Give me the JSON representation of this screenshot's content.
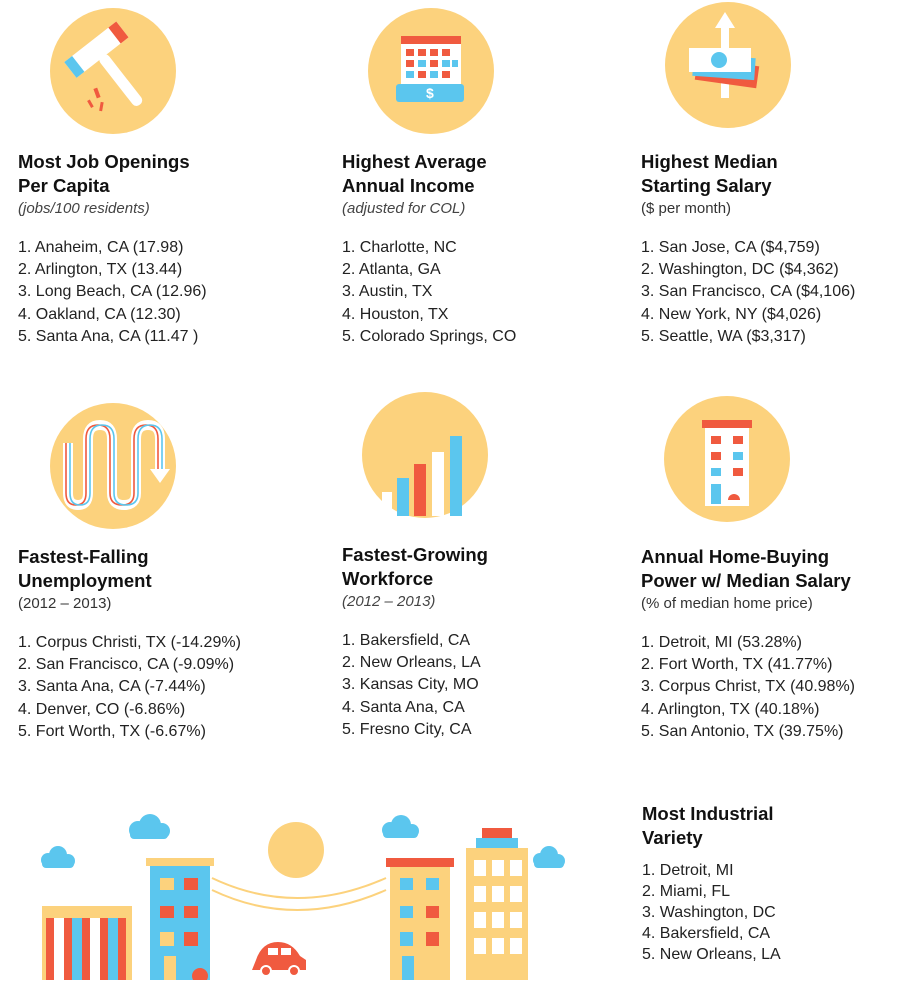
{
  "colors": {
    "circle": "#fcd27d",
    "red": "#f05a3f",
    "blue": "#5bc6ee",
    "white": "#ffffff",
    "text": "#1a1a1a"
  },
  "cards": [
    {
      "id": "job-openings",
      "icon": "hammer-icon",
      "title1": "Most Job Openings",
      "title2": "Per Capita",
      "subtitle": "(jobs/100 residents)",
      "subtitle_italic": true,
      "items": [
        "1. Anaheim, CA  (17.98)",
        "2. Arlington, TX  (13.44)",
        "3. Long Beach, CA  (12.96)",
        "4. Oakland, CA  (12.30)",
        "5. Santa Ana, CA  (11.47 )"
      ]
    },
    {
      "id": "annual-income",
      "icon": "calendar-paycheck-icon",
      "title1": "Highest Average",
      "title2": "Annual Income",
      "subtitle": "(adjusted for COL)",
      "subtitle_italic": true,
      "items": [
        "1. Charlotte, NC",
        "2. Atlanta, GA",
        "3. Austin, TX",
        "4. Houston, TX",
        "5. Colorado Springs, CO"
      ]
    },
    {
      "id": "starting-salary",
      "icon": "money-stack-arrow-icon",
      "title1": "Highest Median",
      "title2": "Starting Salary",
      "subtitle": "($ per month)",
      "subtitle_italic": false,
      "items": [
        "1. San Jose, CA  ($4,759)",
        "2. Washington, DC ($4,362)",
        "3. San Francisco, CA  ($4,106)",
        "4. New York, NY  ($4,026)",
        "5. Seattle, WA  ($3,317)"
      ]
    },
    {
      "id": "falling-unemployment",
      "icon": "winding-arrow-icon",
      "title1": "Fastest-Falling",
      "title2": "Unemployment",
      "subtitle": "(2012 – 2013)",
      "subtitle_italic": false,
      "items": [
        "1. Corpus Christi, TX  (-14.29%)",
        "2. San Francisco, CA  (-9.09%)",
        "3. Santa Ana, CA  (-7.44%)",
        "4. Denver, CO  (-6.86%)",
        "5. Fort Worth, TX  (-6.67%)"
      ]
    },
    {
      "id": "growing-workforce",
      "icon": "bar-growth-icon",
      "title1": "Fastest-Growing",
      "title2": "Workforce",
      "subtitle": "(2012 – 2013)",
      "subtitle_italic": true,
      "items": [
        "1. Bakersfield, CA",
        "2. New Orleans, LA",
        "3. Kansas City, MO",
        "4. Santa Ana, CA",
        "5. Fresno City, CA"
      ]
    },
    {
      "id": "home-buying",
      "icon": "building-icon",
      "title1": "Annual Home-Buying",
      "title2": "Power w/ Median Salary",
      "subtitle": "(% of median home price)",
      "subtitle_italic": false,
      "items": [
        "1. Detroit, MI  (53.28%)",
        "2. Fort Worth, TX  (41.77%)",
        "3. Corpus Christ, TX  (40.98%)",
        "4. Arlington, TX  (40.18%)",
        "5. San Antonio, TX  (39.75%)"
      ]
    },
    {
      "id": "industrial-variety",
      "icon": "",
      "title1": "Most Industrial",
      "title2": "Variety",
      "subtitle": "",
      "subtitle_italic": false,
      "items": [
        "1. Detroit, MI",
        "2. Miami, FL",
        "3. Washington, DC",
        "4. Bakersfield, CA",
        "5. New Orleans, LA"
      ]
    }
  ]
}
